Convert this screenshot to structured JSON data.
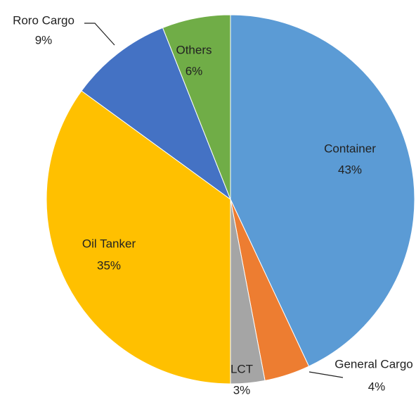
{
  "chart_data": {
    "type": "pie",
    "categories": [
      "Container",
      "General Cargo",
      "LCT",
      "Oil Tanker",
      "Roro Cargo",
      "Others"
    ],
    "values": [
      43,
      4,
      3,
      35,
      9,
      6
    ],
    "value_labels": [
      "43%",
      "4%",
      "3%",
      "35%",
      "9%",
      "6%"
    ],
    "colors": [
      "#5b9bd5",
      "#ed7d31",
      "#a5a5a5",
      "#ffc000",
      "#4472c4",
      "#70ad47"
    ]
  }
}
